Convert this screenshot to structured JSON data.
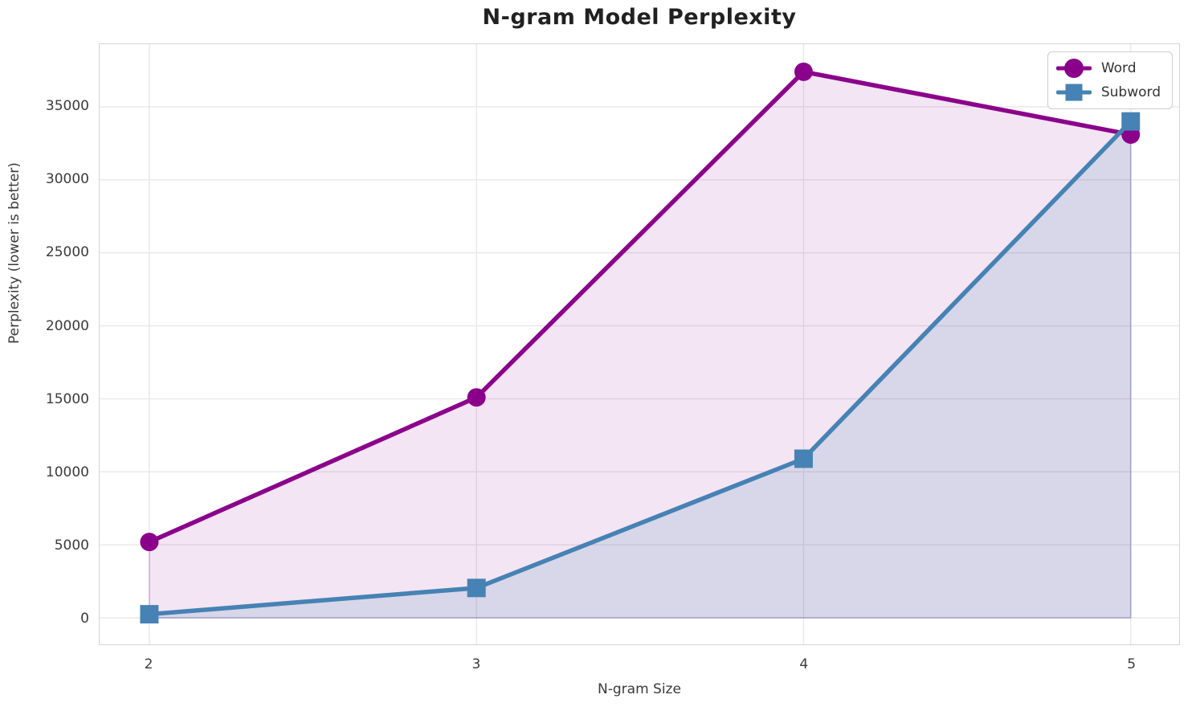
{
  "chart_data": {
    "type": "line",
    "title": "N-gram Model Perplexity",
    "xlabel": "N-gram Size",
    "ylabel": "Perplexity (lower is better)",
    "x": [
      2,
      3,
      4,
      5
    ],
    "x_tick_labels": [
      "2",
      "3",
      "4",
      "5"
    ],
    "y_ticks": [
      0,
      5000,
      10000,
      15000,
      20000,
      25000,
      30000,
      35000
    ],
    "y_tick_labels": [
      "0",
      "5000",
      "10000",
      "15000",
      "20000",
      "25000",
      "30000",
      "35000"
    ],
    "xlim": [
      1.848,
      5.148
    ],
    "ylim": [
      -1810,
      39290
    ],
    "grid": true,
    "legend_position": "upper right",
    "series": [
      {
        "name": "Word",
        "marker": "circle",
        "color": "#8B008B",
        "fill_opacity": 0.1,
        "values": [
          5200,
          15100,
          37400,
          33100
        ]
      },
      {
        "name": "Subword",
        "marker": "square",
        "color": "#4682B4",
        "fill_opacity": 0.15,
        "values": [
          250,
          2050,
          10900,
          34000
        ]
      }
    ],
    "colors": {
      "grid": "#e8e8e8",
      "spine": "#d4d4d4",
      "title_text": "#212121",
      "tick_text": "#3a3a3a"
    }
  }
}
